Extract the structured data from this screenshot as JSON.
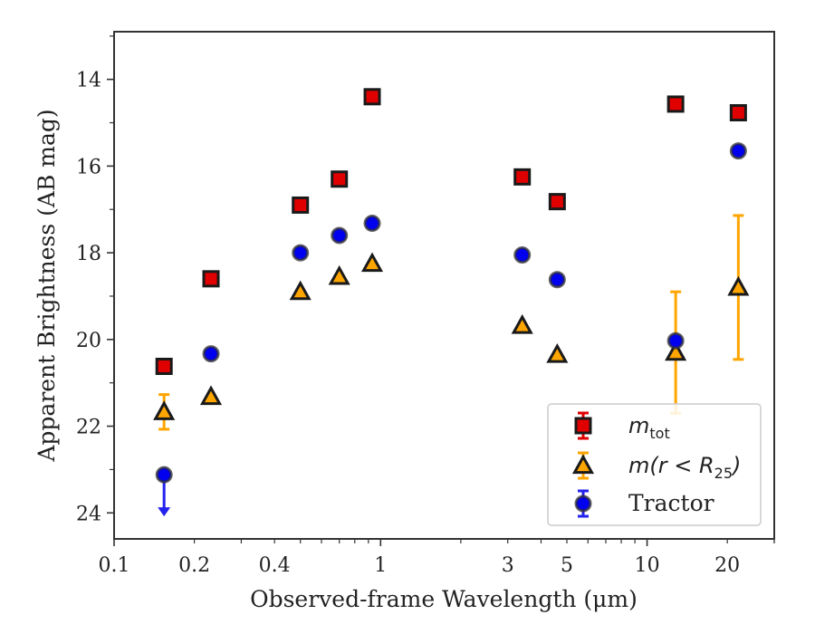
{
  "chart_data": {
    "type": "scatter",
    "xlabel": "Observed-frame Wavelength (μm)",
    "ylabel": "Apparent Brightness (AB mag)",
    "xscale": "log",
    "xlim": [
      0.1,
      30
    ],
    "ylim": [
      24.6,
      12.9
    ],
    "y_inverted": true,
    "grid": false,
    "legend_position": "lower-right",
    "x_tick_labels": [
      {
        "value": 0.1,
        "label": "0.1"
      },
      {
        "value": 0.2,
        "label": "0.2"
      },
      {
        "value": 0.4,
        "label": "0.4"
      },
      {
        "value": 1,
        "label": "1"
      },
      {
        "value": 3,
        "label": "3"
      },
      {
        "value": 5,
        "label": "5"
      },
      {
        "value": 10,
        "label": "10"
      },
      {
        "value": 20,
        "label": "20"
      }
    ],
    "y_tick_labels": [
      {
        "value": 14,
        "label": "14"
      },
      {
        "value": 16,
        "label": "16"
      },
      {
        "value": 18,
        "label": "18"
      },
      {
        "value": 20,
        "label": "20"
      },
      {
        "value": 22,
        "label": "22"
      },
      {
        "value": 24,
        "label": "24"
      }
    ],
    "series": [
      {
        "name": "m_tot",
        "legend_main": "m",
        "legend_sub": "tot",
        "marker": "square",
        "color": "#e00000",
        "err_color": "#e00000",
        "points": [
          {
            "x": 0.154,
            "y": 20.62
          },
          {
            "x": 0.231,
            "y": 18.6
          },
          {
            "x": 0.5,
            "y": 16.9
          },
          {
            "x": 0.7,
            "y": 16.3
          },
          {
            "x": 0.93,
            "y": 14.4
          },
          {
            "x": 3.4,
            "y": 16.25
          },
          {
            "x": 4.6,
            "y": 16.82
          },
          {
            "x": 12.8,
            "y": 14.57
          },
          {
            "x": 22.0,
            "y": 14.77
          }
        ]
      },
      {
        "name": "m(r < R_25)",
        "legend_main": "m(r < R",
        "legend_sub": "25",
        "legend_close": ")",
        "marker": "triangle",
        "color": "#ffa500",
        "err_color": "#ffa500",
        "points": [
          {
            "x": 0.154,
            "y": 21.67,
            "err": 0.4
          },
          {
            "x": 0.231,
            "y": 21.32
          },
          {
            "x": 0.5,
            "y": 18.9
          },
          {
            "x": 0.7,
            "y": 18.55
          },
          {
            "x": 0.93,
            "y": 18.25
          },
          {
            "x": 3.4,
            "y": 19.68
          },
          {
            "x": 4.6,
            "y": 20.35
          },
          {
            "x": 12.8,
            "y": 20.3,
            "err": 1.4
          },
          {
            "x": 22.0,
            "y": 18.8,
            "err": 1.66
          }
        ]
      },
      {
        "name": "Tractor",
        "legend_main": "Tractor",
        "marker": "circle",
        "color": "#0000ee",
        "err_color": "#2222ee",
        "points": [
          {
            "x": 0.154,
            "y": 23.12,
            "upper_limit": true
          },
          {
            "x": 0.231,
            "y": 20.33
          },
          {
            "x": 0.5,
            "y": 18.0
          },
          {
            "x": 0.7,
            "y": 17.6
          },
          {
            "x": 0.93,
            "y": 17.32
          },
          {
            "x": 3.4,
            "y": 18.05
          },
          {
            "x": 4.6,
            "y": 18.62
          },
          {
            "x": 12.8,
            "y": 20.03
          },
          {
            "x": 22.0,
            "y": 15.65
          }
        ]
      }
    ]
  }
}
